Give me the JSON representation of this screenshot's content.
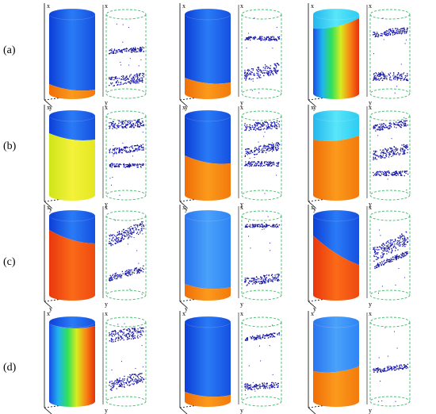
{
  "row_labels": [
    "(a)",
    "(b)",
    "(c)",
    "(d)"
  ],
  "axis_letters": {
    "x": "x",
    "y": "y",
    "z": "z"
  },
  "colors": {
    "blue_dark": "#0b3fd8",
    "blue": "#1b6ff0",
    "cyan": "#2bd6f2",
    "green": "#2fe04a",
    "yellow": "#e8f020",
    "orange": "#f58a10",
    "red": "#e83b10",
    "points": "#1a1aa8",
    "dashed_outline": "#3bbf6a"
  },
  "panels": [
    {
      "row": 0,
      "col": 0,
      "scheme": "blue-with-orange-base"
    },
    {
      "row": 0,
      "col": 1,
      "scheme": "blue-with-orange-base"
    },
    {
      "row": 0,
      "col": 2,
      "scheme": "rainbow-split"
    },
    {
      "row": 1,
      "col": 0,
      "scheme": "yellow-with-blue-cap"
    },
    {
      "row": 1,
      "col": 1,
      "scheme": "orange-with-blue-cap"
    },
    {
      "row": 1,
      "col": 2,
      "scheme": "orange-with-cyan-cap"
    },
    {
      "row": 2,
      "col": 0,
      "scheme": "red-orange-with-blue-cap"
    },
    {
      "row": 2,
      "col": 1,
      "scheme": "blue-with-orange-base"
    },
    {
      "row": 2,
      "col": 2,
      "scheme": "red-diagonal-with-blue-cap"
    },
    {
      "row": 3,
      "col": 0,
      "scheme": "rainbow-vertical"
    },
    {
      "row": 3,
      "col": 1,
      "scheme": "blue-with-orange-base"
    },
    {
      "row": 3,
      "col": 2,
      "scheme": "blue-with-orange-base"
    }
  ]
}
